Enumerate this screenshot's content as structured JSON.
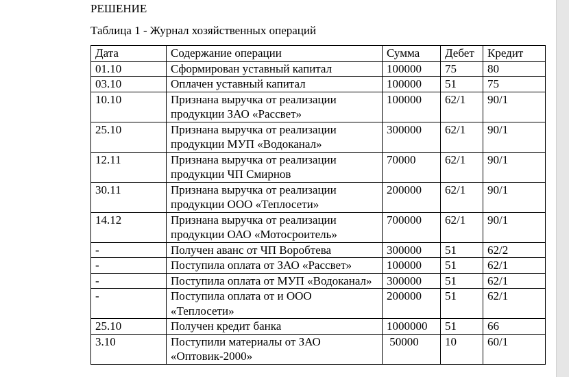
{
  "heading": "РЕШЕНИЕ",
  "caption": "Таблица 1 - Журнал хозяйственных операций",
  "table": {
    "headers": [
      "Дата",
      "Содержание операции",
      "Сумма",
      "Дебет",
      "Кредит"
    ],
    "rows": [
      {
        "date": "01.10",
        "desc": "Сформирован уставный капитал",
        "sum": "100000",
        "debit": "75",
        "credit": "80"
      },
      {
        "date": "03.10",
        "desc": "Оплачен уставный капитал",
        "sum": "100000",
        "debit": "51",
        "credit": "75"
      },
      {
        "date": "10.10",
        "desc": "Признана выручка от реализации продукции ЗАО «Рассвет»",
        "sum": "100000",
        "debit": "62/1",
        "credit": "90/1"
      },
      {
        "date": "25.10",
        "desc": "Признана выручка от реализации продукции МУП «Водоканал»",
        "sum": "300000",
        "debit": "62/1",
        "credit": "90/1"
      },
      {
        "date": "12.11",
        "desc": "Признана выручка от реализации продукции ЧП Смирнов",
        "sum": "70000",
        "debit": "62/1",
        "credit": "90/1"
      },
      {
        "date": "30.11",
        "desc": "Признана выручка от реализации продукции ООО «Теплосети»",
        "sum": "200000",
        "debit": "62/1",
        "credit": "90/1"
      },
      {
        "date": "14.12",
        "desc": "Признана выручка от реализации продукции ОАО «Мотосроитель»",
        "sum": "700000",
        "debit": "62/1",
        "credit": "90/1"
      },
      {
        "date": "-",
        "desc": "Получен аванс от ЧП Воробтева",
        "sum": "300000",
        "debit": "51",
        "credit": "62/2"
      },
      {
        "date": "-",
        "desc": "Поступила оплата от ЗАО «Рассвет»",
        "sum": "100000",
        "debit": "51",
        "credit": "62/1"
      },
      {
        "date": "-",
        "desc": "Поступила оплата от МУП «Водоканал»",
        "sum": "300000",
        "debit": "51",
        "credit": "62/1"
      },
      {
        "date": "-",
        "desc": "Поступила оплата от и ООО «Теплосети»",
        "sum": "200000",
        "debit": "51",
        "credit": "62/1"
      },
      {
        "date": "25.10",
        "desc": "Получен кредит банка",
        "sum": "1000000",
        "debit": "51",
        "credit": "66"
      },
      {
        "date": "3.10",
        "desc": "Поступили материалы от ЗАО «Оптовик-2000»",
        "sum": " 50000",
        "debit": "10",
        "credit": "60/1"
      }
    ]
  }
}
